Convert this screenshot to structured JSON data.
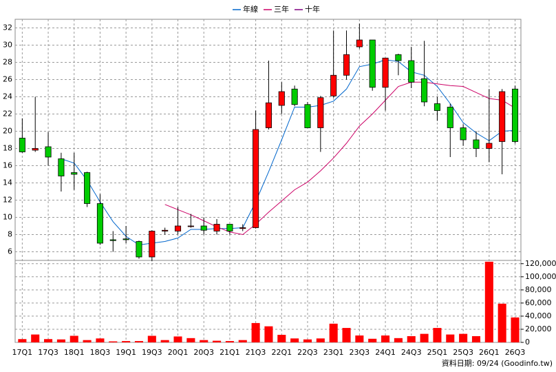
{
  "chart_data": {
    "type": "candlestick",
    "categories": [
      "17Q1",
      null,
      "17Q3",
      null,
      "18Q1",
      null,
      "18Q3",
      null,
      "19Q1",
      null,
      "19Q3",
      null,
      "20Q1",
      null,
      "20Q3",
      null,
      "21Q1",
      null,
      "21Q3",
      null,
      "22Q1",
      null,
      "22Q3",
      null,
      "23Q1",
      null,
      "23Q3",
      null,
      "24Q1",
      null,
      "24Q3",
      null,
      "25Q1",
      null,
      "25Q3",
      null,
      "26Q1",
      null,
      "26Q3"
    ],
    "open": [
      19.2,
      17.8,
      18.2,
      16.8,
      15.2,
      15.2,
      11.6,
      7.4,
      7.5,
      7.2,
      5.4,
      8.4,
      8.4,
      9.0,
      9.0,
      8.4,
      9.2,
      8.7,
      8.8,
      20.4,
      23.0,
      24.9,
      23.1,
      20.4,
      24.1,
      26.5,
      29.8,
      30.6,
      25.1,
      28.9,
      28.2,
      26.1,
      23.2,
      22.8,
      20.4,
      19.0,
      18.0,
      18.8,
      24.9
    ],
    "high": [
      21.5,
      24.0,
      19.9,
      17.5,
      17.5,
      15.3,
      12.7,
      8.4,
      9.0,
      7.3,
      8.5,
      8.8,
      11.2,
      10.4,
      10.0,
      9.8,
      9.2,
      9.2,
      22.4,
      28.2,
      25.7,
      25.3,
      23.4,
      24.1,
      31.7,
      31.7,
      32.5,
      30.6,
      28.5,
      29.0,
      29.8,
      30.5,
      24.0,
      23.2,
      20.8,
      20.0,
      24.9,
      24.9,
      25.3
    ],
    "low": [
      17.5,
      17.6,
      16.0,
      13.0,
      13.2,
      11.2,
      6.8,
      6.0,
      7.0,
      5.2,
      4.9,
      8.0,
      8.0,
      8.8,
      8.0,
      8.0,
      8.0,
      8.4,
      8.7,
      20.2,
      22.0,
      22.9,
      20.4,
      17.6,
      23.9,
      26.0,
      29.6,
      24.7,
      22.4,
      26.5,
      25.0,
      22.9,
      21.2,
      17.0,
      18.3,
      17.0,
      16.4,
      15.0,
      18.6
    ],
    "close": [
      17.6,
      18.0,
      17.0,
      14.8,
      15.0,
      11.6,
      7.0,
      7.3,
      7.4,
      5.4,
      8.4,
      8.5,
      9.0,
      9.0,
      8.5,
      9.2,
      8.4,
      8.8,
      20.2,
      23.3,
      24.6,
      23.1,
      20.4,
      23.9,
      26.5,
      28.9,
      30.6,
      25.1,
      28.5,
      28.2,
      25.7,
      23.4,
      22.4,
      20.4,
      19.0,
      18.0,
      18.6,
      24.6,
      18.8
    ],
    "up_color": "#ff0000",
    "down_color": "#00cc00",
    "series": [
      {
        "name": "年線",
        "color": "#0066cc",
        "values": [
          null,
          null,
          null,
          16.8,
          16.3,
          14.3,
          11.8,
          9.5,
          7.8,
          6.8,
          7.0,
          7.2,
          7.6,
          8.6,
          8.6,
          8.7,
          8.7,
          8.8,
          11.8,
          15.3,
          19.0,
          22.8,
          22.8,
          23.0,
          23.5,
          24.9,
          27.5,
          27.8,
          28.3,
          28.1,
          26.9,
          26.5,
          25.2,
          23.2,
          21.0,
          19.8,
          18.9,
          20.0,
          20.1
        ]
      },
      {
        "name": "三年",
        "color": "#cc0066",
        "values": [
          null,
          null,
          null,
          null,
          null,
          null,
          null,
          null,
          null,
          null,
          null,
          11.5,
          10.9,
          10.3,
          9.6,
          8.9,
          8.3,
          8.0,
          9.2,
          10.6,
          11.9,
          13.2,
          14.1,
          15.4,
          16.9,
          18.6,
          20.6,
          22.0,
          23.6,
          25.2,
          25.7,
          25.7,
          25.5,
          25.3,
          25.2,
          24.5,
          23.8,
          23.6,
          22.7
        ]
      },
      {
        "name": "十年",
        "color": "#800080",
        "values": [
          null,
          null,
          null,
          null,
          null,
          null,
          null,
          null,
          null,
          null,
          null,
          null,
          null,
          null,
          null,
          null,
          null,
          null,
          null,
          null,
          null,
          null,
          null,
          null,
          null,
          null,
          null,
          null,
          null,
          null,
          null,
          null,
          null,
          null,
          null,
          null,
          null,
          null,
          null
        ]
      }
    ],
    "ylim": [
      5,
      33
    ],
    "yticks": [
      6,
      8,
      10,
      12,
      14,
      16,
      18,
      20,
      22,
      24,
      26,
      28,
      30,
      32
    ],
    "grid": true,
    "volume": {
      "color": "#ff0000",
      "values": [
        5000,
        12000,
        5000,
        4500,
        10000,
        3500,
        6000,
        1500,
        2000,
        2000,
        10000,
        3500,
        9000,
        6500,
        3500,
        2500,
        2000,
        3500,
        29500,
        24500,
        11500,
        6000,
        4500,
        6000,
        28500,
        22000,
        10500,
        5500,
        10500,
        6500,
        9500,
        13000,
        22000,
        12000,
        13000,
        9500,
        123000,
        59000,
        38000
      ],
      "ylim": [
        0,
        125000
      ],
      "yticks": [
        0,
        {
          "value": 20000,
          "label": "20,000"
        },
        {
          "value": 40000,
          "label": "40,000"
        },
        {
          "value": 60000,
          "label": "60,000"
        },
        {
          "value": 80000,
          "label": "80,000"
        },
        {
          "value": 100000,
          "label": "100,000"
        },
        {
          "value": 120000,
          "label": "120,000"
        }
      ]
    }
  },
  "footer": "資料日期: 09/24  (Goodinfo.tw)"
}
